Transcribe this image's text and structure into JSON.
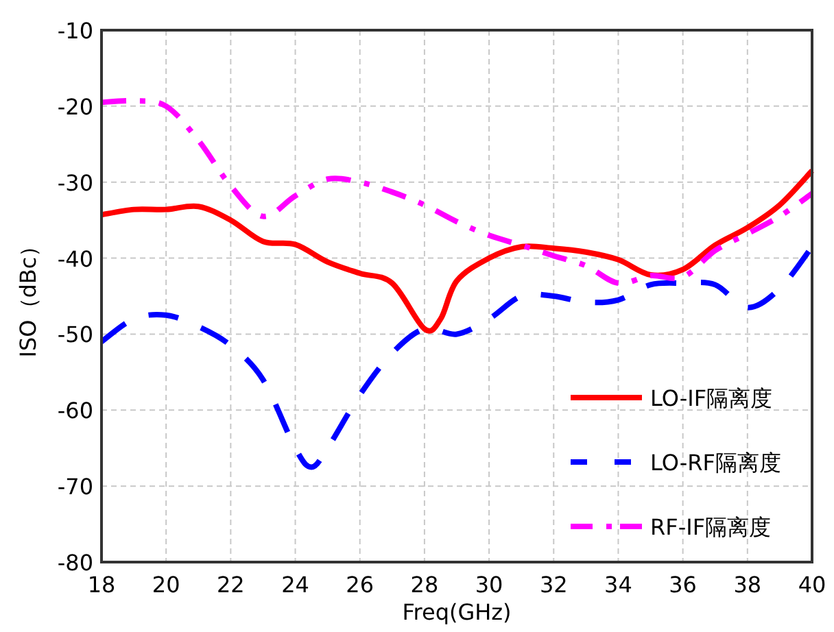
{
  "chart_data": {
    "type": "line",
    "xlabel": "Freq(GHz)",
    "ylabel": "ISO（dBc）",
    "xlim": [
      18,
      40
    ],
    "xticks": [
      18,
      20,
      22,
      24,
      26,
      28,
      30,
      32,
      34,
      36,
      38,
      40
    ],
    "ylim": [
      -80,
      -10
    ],
    "yticks": [
      -80,
      -70,
      -60,
      -50,
      -40,
      -30,
      -20,
      -10
    ],
    "grid": true,
    "legend": "bottom right",
    "series": [
      {
        "name": "LO-IF隔离度",
        "color": "#ff0000",
        "line_style": "solid",
        "x": [
          18,
          19,
          20,
          21,
          22,
          23,
          24,
          25,
          26,
          27,
          28,
          28.5,
          29,
          30,
          31,
          32,
          33,
          34,
          35,
          36,
          37,
          38,
          39,
          40
        ],
        "values": [
          -34.3,
          -33.6,
          -33.6,
          -33.2,
          -35,
          -37.8,
          -38.2,
          -40.5,
          -42,
          -43.3,
          -49.3,
          -48,
          -43,
          -40,
          -38.5,
          -38.7,
          -39.2,
          -40.2,
          -42.2,
          -41.5,
          -38.3,
          -36,
          -33,
          -28.5
        ]
      },
      {
        "name": "LO-RF隔离度",
        "color": "#0000ff",
        "line_style": "dashed",
        "x": [
          18,
          19,
          20,
          21,
          22,
          23,
          24,
          24.5,
          25,
          26,
          27,
          28,
          29,
          30,
          31,
          32,
          33,
          34,
          35,
          36,
          37,
          38,
          39,
          40
        ],
        "values": [
          -51,
          -48,
          -47.5,
          -49,
          -51.5,
          -56,
          -65,
          -67.5,
          -65,
          -58,
          -52.5,
          -49.3,
          -50,
          -48,
          -45,
          -45,
          -45.8,
          -45.5,
          -43.5,
          -43.3,
          -43.5,
          -46.5,
          -44,
          -38.5
        ]
      },
      {
        "name": "RF-IF隔离度",
        "color": "#ff00ff",
        "line_style": "dashdot",
        "x": [
          18,
          19,
          20,
          21,
          22,
          23,
          24,
          25,
          26,
          27,
          28,
          29,
          30,
          31,
          32,
          33,
          34,
          35,
          36,
          37,
          38,
          39,
          40
        ],
        "values": [
          -19.5,
          -19.3,
          -20,
          -24.5,
          -30.5,
          -34.5,
          -31.8,
          -29.6,
          -30,
          -31.3,
          -33,
          -35.2,
          -37,
          -38.3,
          -39.7,
          -41,
          -43.3,
          -42.3,
          -42.5,
          -39,
          -36.8,
          -34.5,
          -31.5
        ]
      }
    ]
  }
}
